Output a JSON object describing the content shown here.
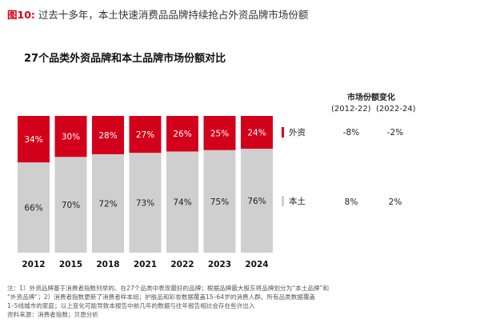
{
  "figure": {
    "label": "图10:",
    "title": "过去十多年，本土快速消费品品牌持续抢占外资品牌市场份额"
  },
  "chart_data": {
    "type": "bar",
    "stacked": true,
    "title": "27个品类外资品牌和本土品牌市场份额对比",
    "categories": [
      "2012",
      "2015",
      "2018",
      "2021",
      "2022",
      "2023",
      "2024"
    ],
    "series": [
      {
        "name": "本土",
        "values": [
          66,
          70,
          72,
          73,
          74,
          75,
          76
        ],
        "labels": [
          "66%",
          "70%",
          "72%",
          "73%",
          "74%",
          "75%",
          "76%"
        ],
        "color": "#cfcfcf"
      },
      {
        "name": "外资",
        "values": [
          34,
          30,
          28,
          27,
          26,
          25,
          24
        ],
        "labels": [
          "34%",
          "30%",
          "28%",
          "27%",
          "26%",
          "25%",
          "24%"
        ],
        "color": "#d3001b"
      }
    ],
    "ylim": [
      0,
      100
    ],
    "legend": "right"
  },
  "share_change": {
    "title": "市场份额变化",
    "periods": [
      "(2012-22)",
      "(2022-24)"
    ],
    "foreign": {
      "name": "外资",
      "values": [
        "-8%",
        "-2%"
      ]
    },
    "local": {
      "name": "本土",
      "values": [
        "8%",
        "2%"
      ]
    }
  },
  "notes": [
    "注：1）外资品牌基于消费者指数列举的、在27个品类中表现最好的品牌；根据品牌最大股东将品牌划分为“本土品牌”和",
    "“外资品牌”；2）消费者指数更新了消费者样本组；护肤品和彩妆数据覆盖15–64岁的消费人群。所有品类数据覆盖",
    "1–5线城市的家庭；以上变化可能导致本报告中前几年的数据与往年报告相比会存在些许出入",
    "资料来源：消费者指数；贝恩分析"
  ]
}
